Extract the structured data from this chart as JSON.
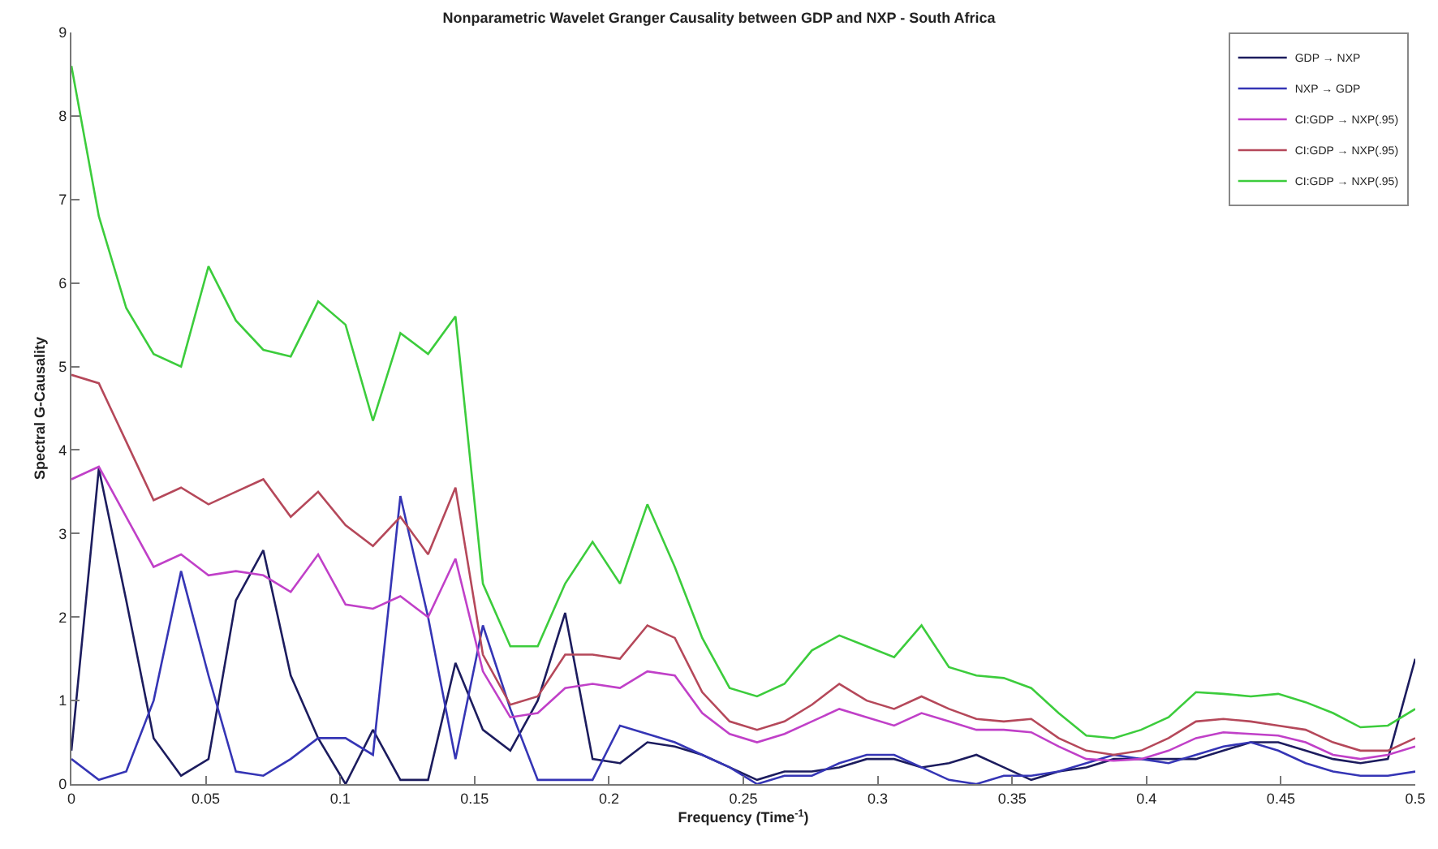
{
  "chart_data": {
    "type": "line",
    "title": "Nonparametric Wavelet Granger Causality between GDP and NXP - South Africa",
    "xlabel": "Frequency (Time$^{-1}$)",
    "ylabel": "Spectral G-Causality",
    "x": [
      0,
      0.0102,
      0.0204,
      0.0306,
      0.0408,
      0.051,
      0.0612,
      0.0714,
      0.0816,
      0.0918,
      0.102,
      0.1122,
      0.1224,
      0.1327,
      0.1429,
      0.1531,
      0.1633,
      0.1735,
      0.1837,
      0.1939,
      0.2041,
      0.2143,
      0.2245,
      0.2347,
      0.2449,
      0.2551,
      0.2653,
      0.2755,
      0.2857,
      0.2959,
      0.3061,
      0.3163,
      0.3265,
      0.3367,
      0.3469,
      0.3571,
      0.3673,
      0.3776,
      0.3878,
      0.398,
      0.4082,
      0.4184,
      0.4286,
      0.4388,
      0.449,
      0.4592,
      0.4694,
      0.4796,
      0.4898,
      0.5
    ],
    "series": [
      {
        "name": "GDP → NXP",
        "color": "#1c1c5e",
        "values": [
          0.4,
          3.78,
          2.2,
          0.55,
          0.1,
          0.3,
          2.2,
          2.8,
          1.3,
          0.55,
          0.0,
          0.65,
          0.05,
          0.05,
          1.45,
          0.65,
          0.4,
          1.0,
          2.05,
          0.3,
          0.25,
          0.5,
          0.45,
          0.35,
          0.2,
          0.05,
          0.15,
          0.15,
          0.2,
          0.3,
          0.3,
          0.2,
          0.25,
          0.35,
          0.2,
          0.05,
          0.15,
          0.2,
          0.3,
          0.3,
          0.3,
          0.3,
          0.4,
          0.5,
          0.5,
          0.4,
          0.3,
          0.25,
          0.3,
          1.5
        ]
      },
      {
        "name": "NXP → GDP",
        "color": "#3535b5",
        "values": [
          0.3,
          0.05,
          0.15,
          1.0,
          2.55,
          1.3,
          0.15,
          0.1,
          0.3,
          0.55,
          0.55,
          0.35,
          3.45,
          2.0,
          0.3,
          1.9,
          0.9,
          0.05,
          0.05,
          0.05,
          0.7,
          0.6,
          0.5,
          0.35,
          0.2,
          0.0,
          0.1,
          0.1,
          0.25,
          0.35,
          0.35,
          0.2,
          0.05,
          0.0,
          0.1,
          0.1,
          0.15,
          0.25,
          0.35,
          0.3,
          0.25,
          0.35,
          0.45,
          0.5,
          0.4,
          0.25,
          0.15,
          0.1,
          0.1,
          0.15
        ]
      },
      {
        "name": "CI:GDP → NXP(.95)",
        "color": "#c040c8",
        "values": [
          3.65,
          3.8,
          3.2,
          2.6,
          2.75,
          2.5,
          2.55,
          2.5,
          2.3,
          2.75,
          2.15,
          2.1,
          2.25,
          2.0,
          2.7,
          1.35,
          0.8,
          0.85,
          1.15,
          1.2,
          1.15,
          1.35,
          1.3,
          0.85,
          0.6,
          0.5,
          0.6,
          0.75,
          0.9,
          0.8,
          0.7,
          0.85,
          0.75,
          0.65,
          0.65,
          0.62,
          0.45,
          0.3,
          0.28,
          0.3,
          0.4,
          0.55,
          0.62,
          0.6,
          0.58,
          0.5,
          0.35,
          0.3,
          0.35,
          0.45
        ]
      },
      {
        "name": "CI:GDP → NXP(.95)",
        "color": "#b5485a",
        "values": [
          4.9,
          4.8,
          4.1,
          3.4,
          3.55,
          3.35,
          3.5,
          3.65,
          3.2,
          3.5,
          3.1,
          2.85,
          3.2,
          2.75,
          3.55,
          1.55,
          0.95,
          1.05,
          1.55,
          1.55,
          1.5,
          1.9,
          1.75,
          1.1,
          0.75,
          0.65,
          0.75,
          0.95,
          1.2,
          1.0,
          0.9,
          1.05,
          0.9,
          0.78,
          0.75,
          0.78,
          0.55,
          0.4,
          0.35,
          0.4,
          0.55,
          0.75,
          0.78,
          0.75,
          0.7,
          0.65,
          0.5,
          0.4,
          0.4,
          0.55
        ]
      },
      {
        "name": "CI:GDP → NXP(.95)",
        "color": "#3ccc3c",
        "values": [
          8.6,
          6.8,
          5.7,
          5.15,
          5.0,
          6.2,
          5.55,
          5.2,
          5.12,
          5.78,
          5.5,
          4.35,
          5.4,
          5.15,
          5.6,
          2.4,
          1.65,
          1.65,
          2.4,
          2.9,
          2.4,
          3.35,
          2.6,
          1.75,
          1.15,
          1.05,
          1.2,
          1.6,
          1.78,
          1.65,
          1.52,
          1.9,
          1.4,
          1.3,
          1.27,
          1.15,
          0.85,
          0.58,
          0.55,
          0.65,
          0.8,
          1.1,
          1.08,
          1.05,
          1.08,
          0.98,
          0.85,
          0.68,
          0.7,
          0.9
        ]
      }
    ],
    "xlim": [
      0,
      0.5
    ],
    "xticks": [
      0,
      0.05,
      0.1,
      0.15,
      0.2,
      0.25,
      0.3,
      0.35,
      0.4,
      0.45,
      0.5
    ],
    "ylim": [
      0,
      9
    ],
    "yticks": [
      0,
      1,
      2,
      3,
      4,
      5,
      6,
      7,
      8,
      9
    ],
    "grid": false,
    "legend": "top right",
    "marker": "none",
    "line_style": "solid"
  }
}
